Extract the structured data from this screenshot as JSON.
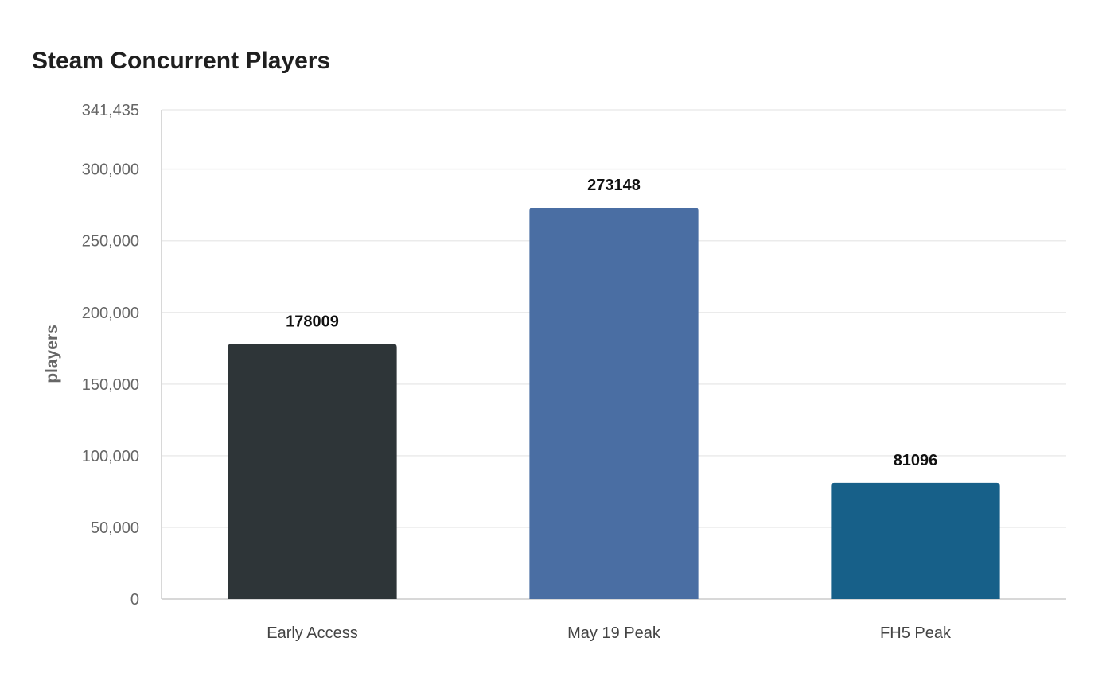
{
  "chart_data": {
    "type": "bar",
    "title": "Steam Concurrent Players",
    "xlabel": "",
    "ylabel": "players",
    "categories": [
      "Early Access",
      "May 19 Peak",
      "FH5 Peak"
    ],
    "values": [
      178009,
      273148,
      81096
    ],
    "data_labels": [
      "178009",
      "273148",
      "81096"
    ],
    "colors": [
      "#2e3538",
      "#4a6ea3",
      "#176089"
    ],
    "ylim": [
      0,
      341435
    ],
    "yticks": [
      0,
      50000,
      100000,
      150000,
      200000,
      250000,
      300000,
      341435
    ],
    "ytick_labels": [
      "0",
      "50,000",
      "100,000",
      "150,000",
      "200,000",
      "250,000",
      "300,000",
      "341,435"
    ],
    "grid": true,
    "grid_color": "#ebebeb",
    "axis_color": "#cccccc",
    "legend": "none"
  }
}
